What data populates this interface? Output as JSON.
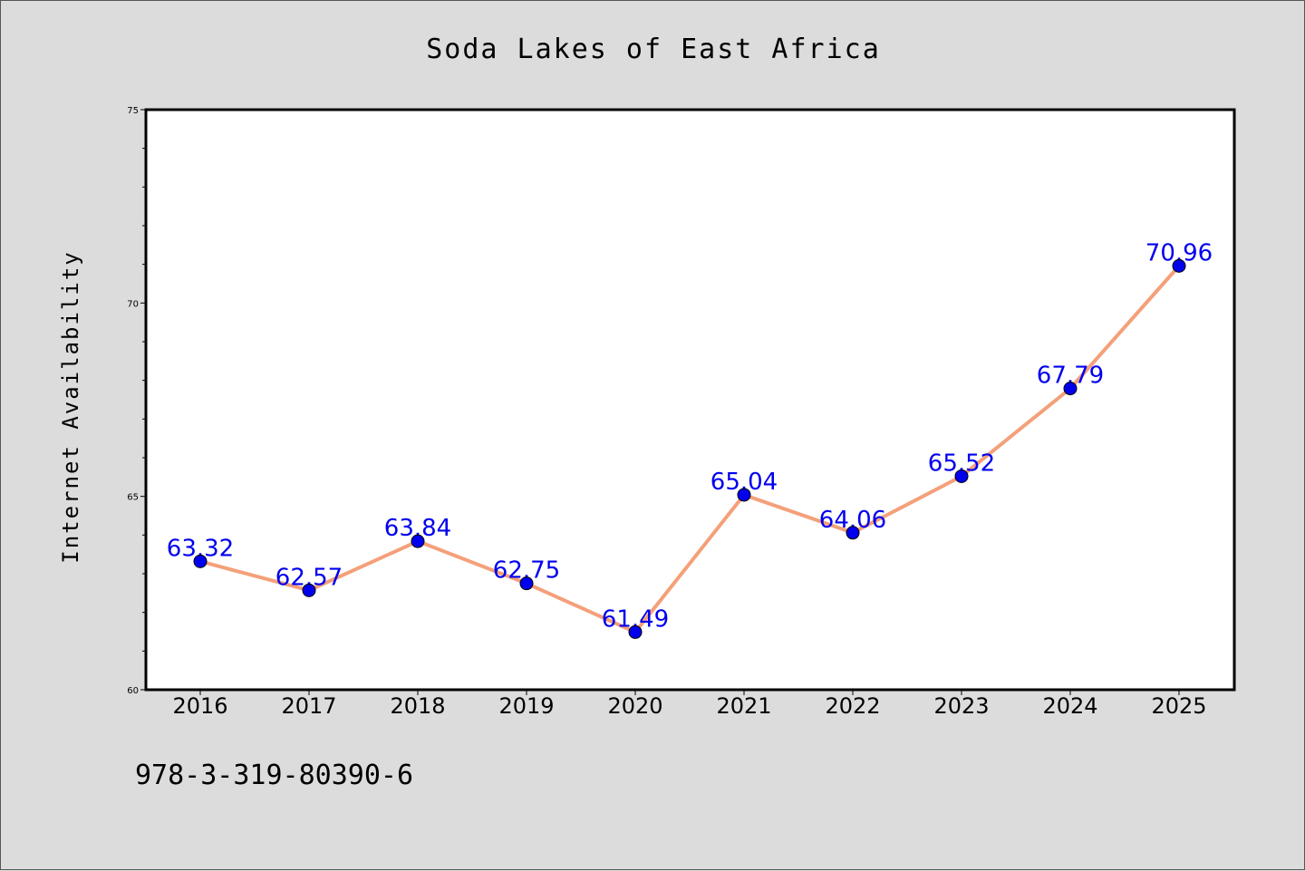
{
  "chart_data": {
    "type": "line",
    "title": "Soda Lakes of East Africa",
    "xlabel": "",
    "ylabel": "Internet Availability",
    "x": [
      "2016",
      "2017",
      "2018",
      "2019",
      "2020",
      "2021",
      "2022",
      "2023",
      "2024",
      "2025"
    ],
    "series": [
      {
        "values": [
          63.32,
          62.57,
          63.84,
          62.75,
          61.49,
          65.04,
          64.06,
          65.52,
          67.79,
          70.96
        ],
        "labels": [
          "63.32",
          "62.57",
          "63.84",
          "62.75",
          "61.49",
          "65.04",
          "64.06",
          "65.52",
          "67.79",
          "70.96"
        ]
      }
    ],
    "ylim": [
      60,
      75
    ],
    "yticks": [
      "60",
      "65",
      "70",
      "75"
    ],
    "grid": false,
    "colors": {
      "line": "#f4a07a",
      "marker": "#0000ee",
      "label": "#0000ee",
      "plot_bg": "#ffffff",
      "figure_bg": "#dcdcdc"
    }
  },
  "footer": {
    "text": "978-3-319-80390-6"
  }
}
